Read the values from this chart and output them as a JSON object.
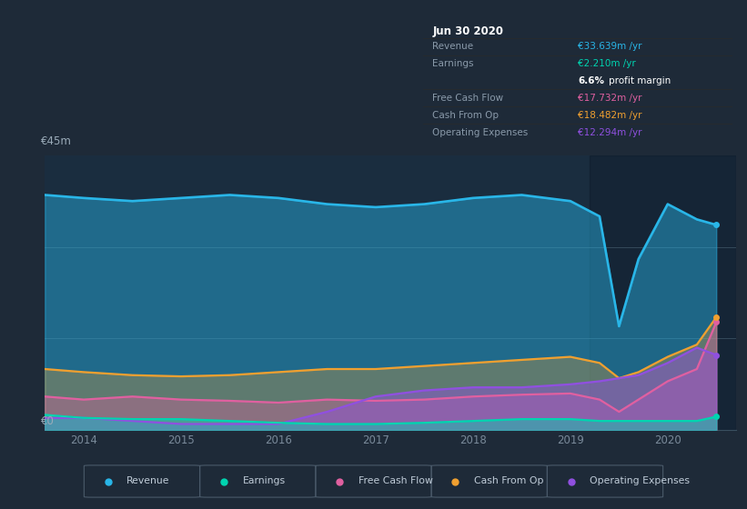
{
  "bg_color": "#1e2a38",
  "plot_bg_color": "#1a2d3f",
  "ylabel_top": "€45m",
  "ylabel_bottom": "€0",
  "x_years": [
    2013.6,
    2014.0,
    2014.5,
    2015.0,
    2015.5,
    2016.0,
    2016.5,
    2017.0,
    2017.5,
    2018.0,
    2018.5,
    2019.0,
    2019.3,
    2019.5,
    2019.7,
    2020.0,
    2020.3,
    2020.5
  ],
  "revenue": [
    38.5,
    38.0,
    37.5,
    38.0,
    38.5,
    38.0,
    37.0,
    36.5,
    37.0,
    38.0,
    38.5,
    37.5,
    35.0,
    17.0,
    28.0,
    37.0,
    34.5,
    33.6
  ],
  "earnings": [
    2.5,
    2.0,
    1.8,
    1.8,
    1.5,
    1.2,
    1.0,
    1.0,
    1.2,
    1.5,
    1.8,
    1.8,
    1.5,
    1.5,
    1.5,
    1.5,
    1.5,
    2.2
  ],
  "free_cash_flow": [
    5.5,
    5.0,
    5.5,
    5.0,
    4.8,
    4.5,
    5.0,
    4.8,
    5.0,
    5.5,
    5.8,
    6.0,
    5.0,
    3.0,
    5.0,
    8.0,
    10.0,
    17.7
  ],
  "cash_from_op": [
    10.0,
    9.5,
    9.0,
    8.8,
    9.0,
    9.5,
    10.0,
    10.0,
    10.5,
    11.0,
    11.5,
    12.0,
    11.0,
    8.5,
    9.5,
    12.0,
    14.0,
    18.5
  ],
  "operating_expenses": [
    2.0,
    2.0,
    1.5,
    1.0,
    1.0,
    1.0,
    3.0,
    5.5,
    6.5,
    7.0,
    7.0,
    7.5,
    8.0,
    8.5,
    9.0,
    11.0,
    13.5,
    12.3
  ],
  "revenue_color": "#29b6e8",
  "earnings_color": "#00d4b0",
  "free_cash_flow_color": "#e060a0",
  "cash_from_op_color": "#f0a030",
  "operating_expenses_color": "#9050e0",
  "info_box": {
    "title": "Jun 30 2020",
    "rows": [
      {
        "label": "Revenue",
        "value": "€33.639m /yr",
        "color": "#29b6e8",
        "div_above": true
      },
      {
        "label": "Earnings",
        "value": "€2.210m /yr",
        "color": "#00d4b0",
        "div_above": true
      },
      {
        "label": "",
        "value": "6.6% profit margin",
        "color": "#ffffff",
        "div_above": false
      },
      {
        "label": "Free Cash Flow",
        "value": "€17.732m /yr",
        "color": "#e060a0",
        "div_above": true
      },
      {
        "label": "Cash From Op",
        "value": "€18.482m /yr",
        "color": "#f0a030",
        "div_above": true
      },
      {
        "label": "Operating Expenses",
        "value": "€12.294m /yr",
        "color": "#9050e0",
        "div_above": true
      }
    ]
  },
  "legend_items": [
    "Revenue",
    "Earnings",
    "Free Cash Flow",
    "Cash From Op",
    "Operating Expenses"
  ],
  "legend_colors": [
    "#29b6e8",
    "#00d4b0",
    "#e060a0",
    "#f0a030",
    "#9050e0"
  ],
  "ylim_max": 45,
  "x_min": 2013.6,
  "x_max": 2020.7
}
